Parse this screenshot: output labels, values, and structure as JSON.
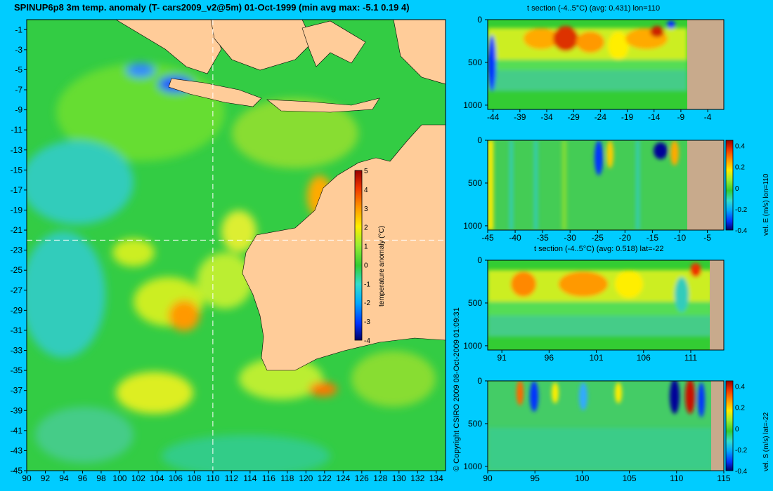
{
  "title": "SPINUP6p8 3m temp. anomaly (T- cars2009_v2@5m) 01-Oct-1999 (min avg max: -5.1 0.19 4)",
  "copyright": "© Copyright CSIRO 2009  08-Oct-2009 01:09:31",
  "colors": {
    "background": "#00ccff",
    "land": "#ffcc99",
    "section_land": "#c8aa8c",
    "crosshair": "#ffffff"
  },
  "chart_data": [
    {
      "type": "heatmap",
      "name": "map",
      "xlim": [
        90,
        135
      ],
      "ylim": [
        -45,
        0
      ],
      "xticks": [
        "90",
        "92",
        "94",
        "96",
        "98",
        "100",
        "102",
        "104",
        "106",
        "108",
        "110",
        "112",
        "114",
        "116",
        "118",
        "120",
        "122",
        "124",
        "126",
        "128",
        "130",
        "132",
        "134"
      ],
      "yticks": [
        "-1",
        "-3",
        "-5",
        "-7",
        "-9",
        "-11",
        "-13",
        "-15",
        "-17",
        "-19",
        "-21",
        "-23",
        "-25",
        "-27",
        "-29",
        "-31",
        "-33",
        "-35",
        "-37",
        "-39",
        "-41",
        "-43",
        "-45"
      ],
      "crosshair": {
        "lon": 110,
        "lat": -22
      },
      "colorbar": {
        "label": "temperature anomaly (°C)",
        "range": [
          -4,
          5
        ],
        "ticks": [
          "5",
          "4",
          "3",
          "2",
          "1",
          "0",
          "-1",
          "-2",
          "-3",
          "-4"
        ]
      }
    },
    {
      "type": "heatmap",
      "name": "t-section-lon110",
      "title": "t section (-4..5°C) (avg: 0.431) lon=110",
      "xlim": [
        -45,
        -1
      ],
      "ylim": [
        1050,
        0
      ],
      "xticks": [
        "-44",
        "-39",
        "-34",
        "-29",
        "-24",
        "-19",
        "-14",
        "-9",
        "-4"
      ],
      "yticks": [
        "0",
        "500",
        "1000"
      ]
    },
    {
      "type": "heatmap",
      "name": "u-section-lon110",
      "xlim": [
        -45,
        -2
      ],
      "ylim": [
        1050,
        0
      ],
      "xticks": [
        "-45",
        "-40",
        "-35",
        "-30",
        "-25",
        "-20",
        "-15",
        "-10",
        "-5"
      ],
      "yticks": [
        "0",
        "500",
        "1000"
      ],
      "colorbar": {
        "label": "vel. E (m/s) lon=110",
        "range": [
          -0.4,
          0.45
        ],
        "ticks": [
          "0.4",
          "0.2",
          "0",
          "-0.2",
          "-0.4"
        ]
      }
    },
    {
      "type": "heatmap",
      "name": "t-section-lat-22",
      "title": "t section (-4..5°C) (avg: 0.518) lat=-22",
      "xlim": [
        89.5,
        114.5
      ],
      "ylim": [
        1050,
        0
      ],
      "xticks": [
        "91",
        "96",
        "101",
        "106",
        "111"
      ],
      "yticks": [
        "0",
        "500",
        "1000"
      ]
    },
    {
      "type": "heatmap",
      "name": "v-section-lat-22",
      "xlim": [
        90,
        115
      ],
      "ylim": [
        1050,
        0
      ],
      "xticks": [
        "90",
        "95",
        "100",
        "105",
        "110",
        "115"
      ],
      "yticks": [
        "0",
        "500",
        "1000"
      ],
      "colorbar": {
        "label": "vel. S (m/s) lat=-22",
        "range": [
          -0.4,
          0.45
        ],
        "ticks": [
          "0.4",
          "0.2",
          "0",
          "-0.2",
          "-0.4"
        ]
      }
    }
  ]
}
